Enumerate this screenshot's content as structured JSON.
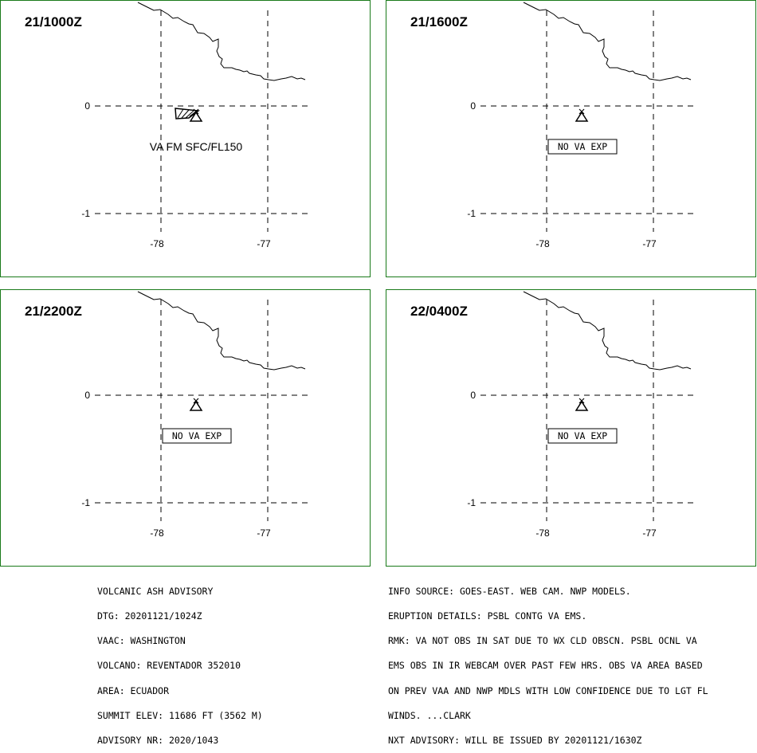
{
  "panels": [
    {
      "time": "21/1000Z",
      "label": "VA FM SFC/FL150",
      "label_style": "plain",
      "ash_polygon": true
    },
    {
      "time": "21/1600Z",
      "label": "NO VA EXP",
      "label_style": "boxed",
      "ash_polygon": false
    },
    {
      "time": "21/2200Z",
      "label": "NO VA EXP",
      "label_style": "boxed",
      "ash_polygon": false
    },
    {
      "time": "22/0400Z",
      "label": "NO VA EXP",
      "label_style": "boxed",
      "ash_polygon": false
    }
  ],
  "map": {
    "lat_labels": [
      "0",
      "-1"
    ],
    "lon_labels": [
      "-78",
      "-77"
    ],
    "volcano_icon": "volcano-triangle-icon",
    "colors": {
      "border": "#1a7a1a",
      "lines": "#000000"
    }
  },
  "advisory_left": [
    "VOLCANIC ASH ADVISORY",
    "DTG: 20201121/1024Z",
    "VAAC: WASHINGTON",
    "VOLCANO: REVENTADOR 352010",
    "AREA: ECUADOR",
    "SUMMIT ELEV: 11686 FT (3562 M)",
    "ADVISORY NR: 2020/1043"
  ],
  "advisory_right": [
    "INFO SOURCE: GOES-EAST. WEB CAM. NWP MODELS.",
    "ERUPTION DETAILS: PSBL CONTG VA EMS.",
    "RMK: VA NOT OBS IN SAT DUE TO WX CLD OBSCN. PSBL OCNL VA",
    "EMS OBS IN IR WEBCAM OVER PAST FEW HRS. OBS VA AREA BASED",
    "ON PREV VAA AND NWP MDLS WITH LOW CONFIDENCE DUE TO LGT FL",
    "WINDS. ...CLARK",
    "NXT ADVISORY: WILL BE ISSUED BY 20201121/1630Z"
  ]
}
